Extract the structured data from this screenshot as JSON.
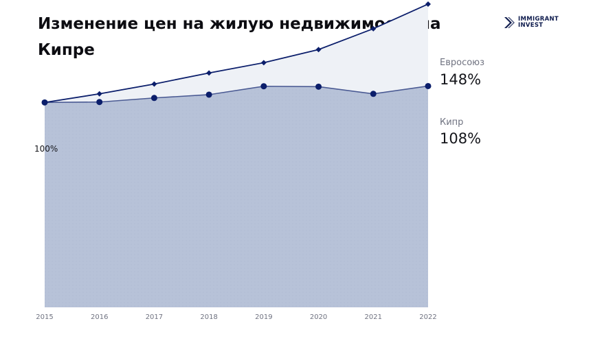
{
  "brand": {
    "line1": "IMMIGRANT",
    "line2": "INVEST",
    "icon": "chevron-logo-icon",
    "color": "#0e1b4d"
  },
  "chart_data": {
    "type": "area",
    "title": "Изменение цен на жилую недвижимость на Кипре",
    "categories": [
      "2015",
      "2016",
      "2017",
      "2018",
      "2019",
      "2020",
      "2021",
      "2022"
    ],
    "ylim": [
      0,
      150
    ],
    "start_label": "100%",
    "series": [
      {
        "name": "Евросоюз",
        "end_label": "148%",
        "values": [
          100,
          104.2,
          109,
          114.4,
          119.4,
          125.8,
          136,
          148
        ],
        "line_color": "#0b1e6b",
        "fill_color": "#eef1f6",
        "marker": "diamond"
      },
      {
        "name": "Кипр",
        "end_label": "108%",
        "values": [
          100,
          100.2,
          102.2,
          103.8,
          107.9,
          107.7,
          104.2,
          108
        ],
        "line_color": "#4a5a93",
        "fill_color": "#b7c2d8",
        "marker": "circle"
      }
    ],
    "grid": false,
    "legend": "right"
  }
}
